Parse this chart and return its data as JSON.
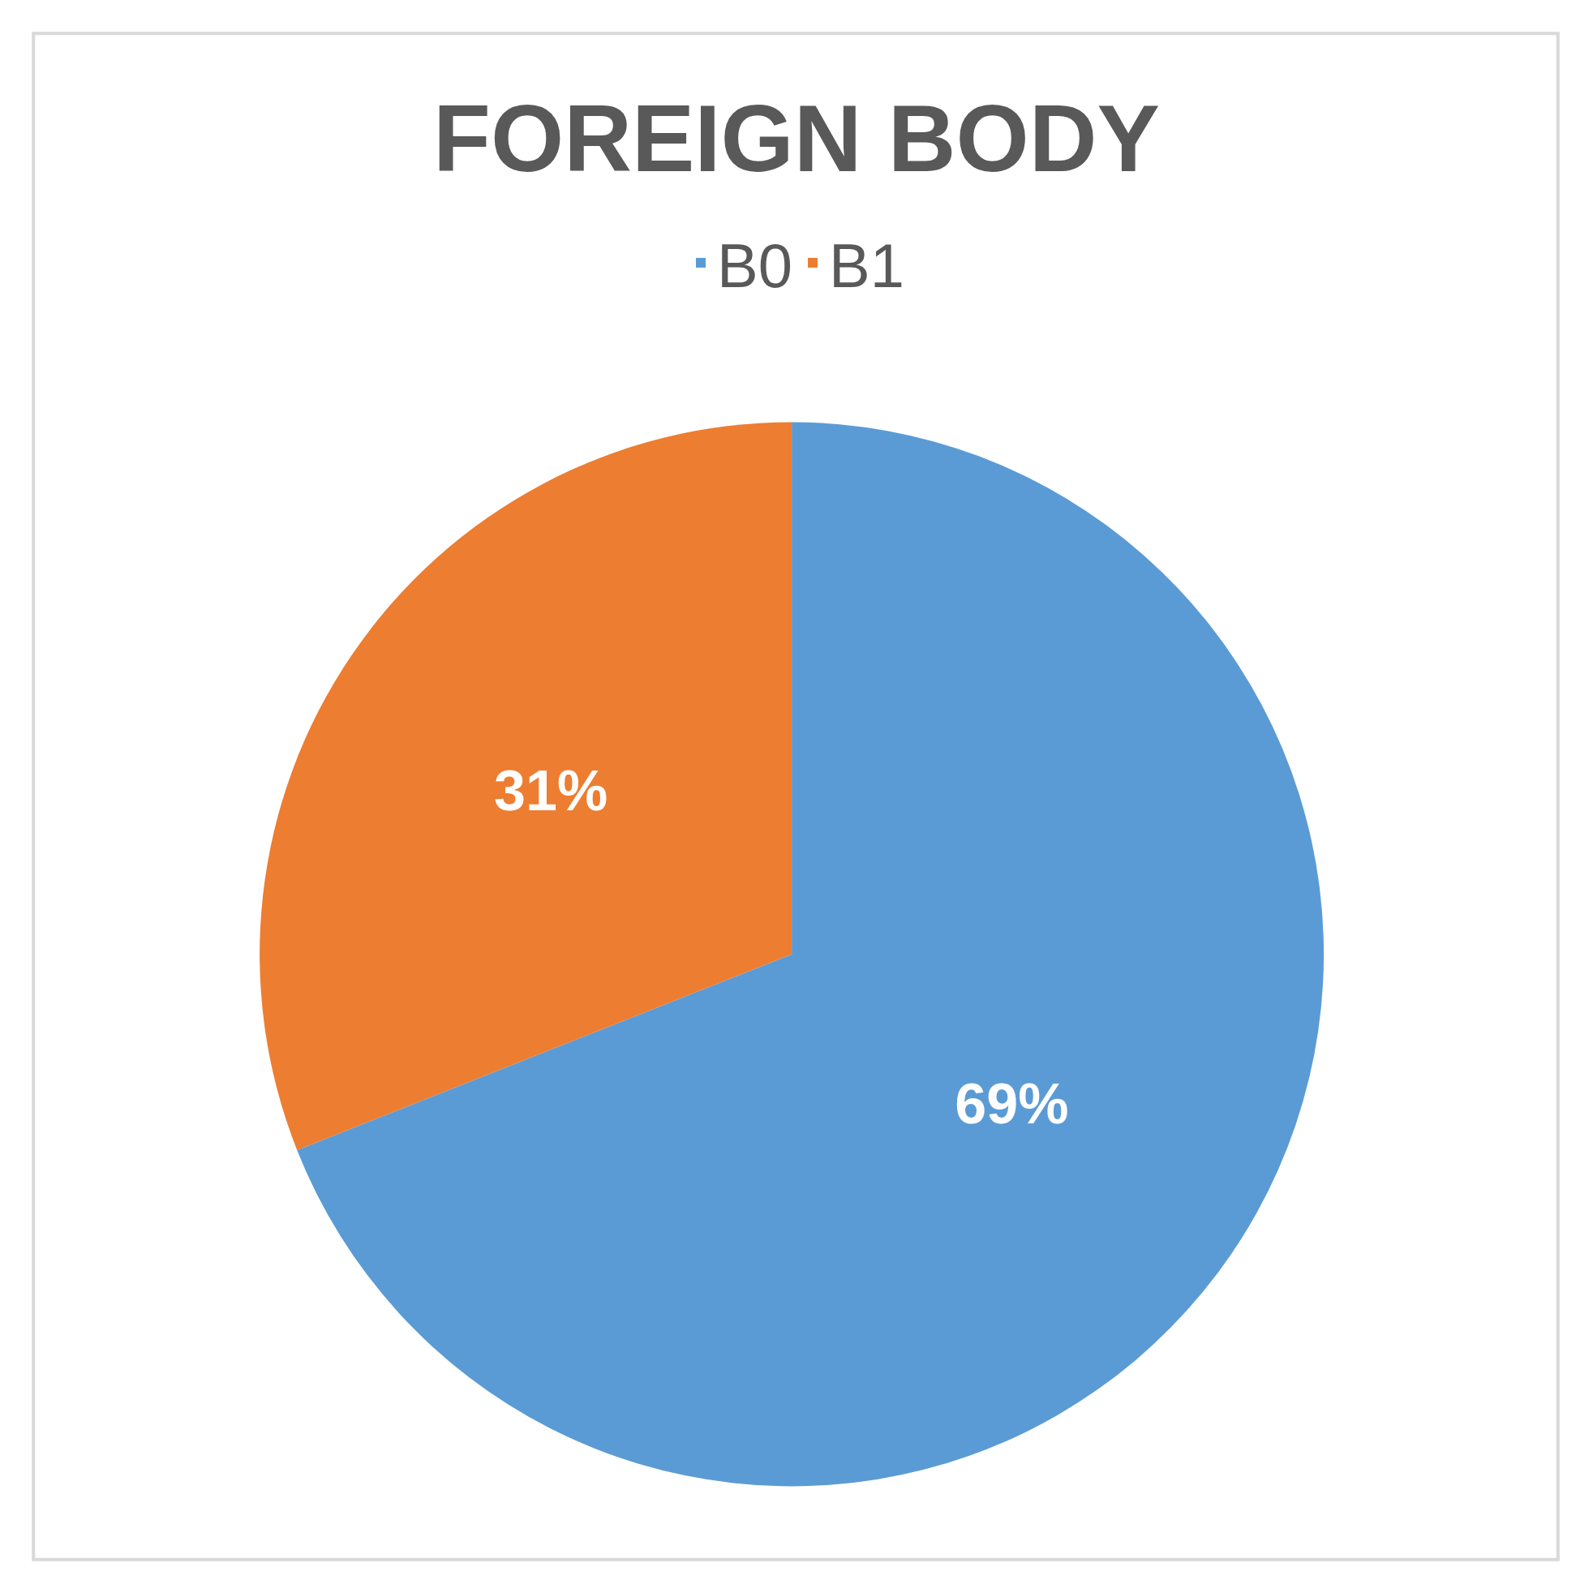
{
  "chart_data": {
    "type": "pie",
    "title": "FOREIGN BODY",
    "categories": [
      "B0",
      "B1"
    ],
    "values": [
      69,
      31
    ],
    "value_labels": [
      "69%",
      "31%"
    ],
    "colors": [
      "#5b9bd5",
      "#ed7d31"
    ],
    "legend": "top"
  }
}
